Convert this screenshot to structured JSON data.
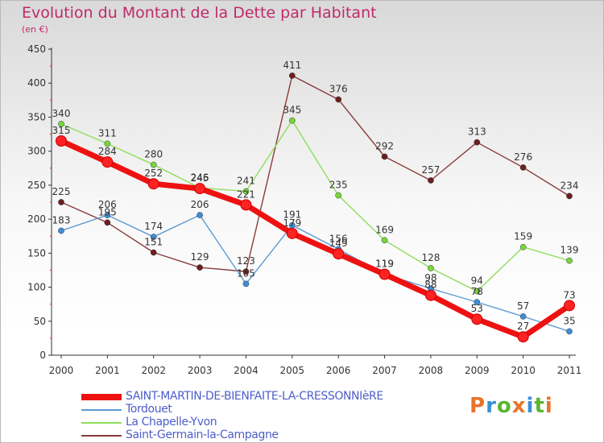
{
  "header": {
    "title": "Evolution du Montant de la Dette par Habitant",
    "subtitle": "(en €)"
  },
  "logo": {
    "text": "Proxiti",
    "colors": [
      "#e8732a",
      "#3a8fd6",
      "#5bb532",
      "#e8732a",
      "#3a8fd6",
      "#5bb532",
      "#e8732a"
    ]
  },
  "chart_data": {
    "type": "line",
    "categories": [
      "2000",
      "2001",
      "2002",
      "2003",
      "2004",
      "2005",
      "2006",
      "2007",
      "2008",
      "2009",
      "2010",
      "2011"
    ],
    "ylim": [
      0,
      450
    ],
    "yticks": [
      0,
      50,
      100,
      150,
      200,
      250,
      300,
      350,
      400,
      450
    ],
    "grid": false,
    "legend_position": "bottom-left",
    "series": [
      {
        "name": "SAINT-MARTIN-DE-BIENFAITE-LA-CRESSONNIèRE",
        "color": "#ee1111",
        "marker_color": "#ff2222",
        "values": [
          315,
          284,
          252,
          245,
          221,
          179,
          149,
          119,
          88,
          53,
          27,
          73
        ]
      },
      {
        "name": "Tordouet",
        "color": "#5d9bd3",
        "marker_color": "#3f8ed8",
        "values": [
          183,
          206,
          174,
          206,
          105,
          191,
          156,
          119,
          98,
          78,
          57,
          35
        ]
      },
      {
        "name": "La Chapelle-Yvon",
        "color": "#8ede5a",
        "marker_color": "#79d63b",
        "values": [
          340,
          311,
          280,
          246,
          241,
          345,
          235,
          169,
          128,
          94,
          159,
          139
        ]
      },
      {
        "name": "Saint-Germain-la-Campagne",
        "color": "#8a3a3a",
        "marker_color": "#6b1f1f",
        "values": [
          225,
          195,
          151,
          129,
          123,
          411,
          376,
          292,
          257,
          313,
          276,
          234
        ]
      }
    ]
  }
}
